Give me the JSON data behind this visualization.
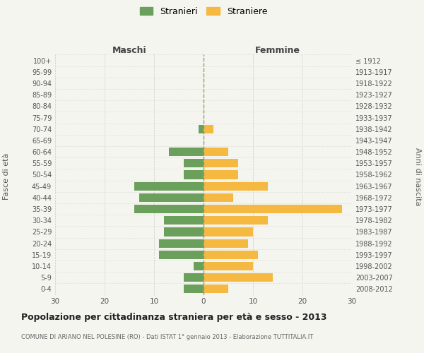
{
  "age_groups": [
    "0-4",
    "5-9",
    "10-14",
    "15-19",
    "20-24",
    "25-29",
    "30-34",
    "35-39",
    "40-44",
    "45-49",
    "50-54",
    "55-59",
    "60-64",
    "65-69",
    "70-74",
    "75-79",
    "80-84",
    "85-89",
    "90-94",
    "95-99",
    "100+"
  ],
  "birth_years": [
    "2008-2012",
    "2003-2007",
    "1998-2002",
    "1993-1997",
    "1988-1992",
    "1983-1987",
    "1978-1982",
    "1973-1977",
    "1968-1972",
    "1963-1967",
    "1958-1962",
    "1953-1957",
    "1948-1952",
    "1943-1947",
    "1938-1942",
    "1933-1937",
    "1928-1932",
    "1923-1927",
    "1918-1922",
    "1913-1917",
    "≤ 1912"
  ],
  "males": [
    4,
    4,
    2,
    9,
    9,
    8,
    8,
    14,
    13,
    14,
    4,
    4,
    7,
    0,
    1,
    0,
    0,
    0,
    0,
    0,
    0
  ],
  "females": [
    5,
    14,
    10,
    11,
    9,
    10,
    13,
    28,
    6,
    13,
    7,
    7,
    5,
    0,
    2,
    0,
    0,
    0,
    0,
    0,
    0
  ],
  "male_color": "#6a9f5c",
  "female_color": "#f5b942",
  "bar_height": 0.75,
  "xlim": 30,
  "title": "Popolazione per cittadinanza straniera per età e sesso - 2013",
  "subtitle": "COMUNE DI ARIANO NEL POLESINE (RO) - Dati ISTAT 1° gennaio 2013 - Elaborazione TUTTITALIA.IT",
  "ylabel_left": "Fasce di età",
  "ylabel_right": "Anni di nascita",
  "xlabel_left": "Maschi",
  "xlabel_right": "Femmine",
  "legend_male": "Stranieri",
  "legend_female": "Straniere",
  "bg_color": "#f5f5f0",
  "grid_color": "#cccccc",
  "center_line_color": "#999966"
}
